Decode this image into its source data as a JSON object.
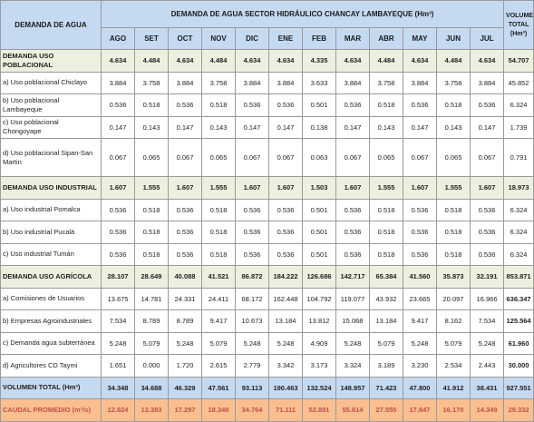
{
  "table": {
    "corner_header": "DEMANDA DE AGUA",
    "group_header": "DEMANDA DE AGUA SECTOR HIDRÁULICO CHANCAY LAMBAYEQUE (Hm³)",
    "total_header": "VOLUMEN TOTAL (Hm³)",
    "months": [
      "AGO",
      "SET",
      "OCT",
      "NOV",
      "DIC",
      "ENE",
      "FEB",
      "MAR",
      "ABR",
      "MAY",
      "JUN",
      "JUL"
    ],
    "rows": [
      {
        "kind": "cat",
        "label": "DEMANDA USO POBLACIONAL",
        "values": [
          "4.634",
          "4.484",
          "4.634",
          "4.484",
          "4.634",
          "4.634",
          "4.335",
          "4.634",
          "4.484",
          "4.634",
          "4.484",
          "4.634"
        ],
        "total": "54.707"
      },
      {
        "kind": "sub",
        "label": "a) Uso poblacional Chiclayo",
        "values": [
          "3.884",
          "3.758",
          "3.884",
          "3.758",
          "3.884",
          "3.884",
          "3.633",
          "3.884",
          "3.758",
          "3.884",
          "3.758",
          "3.884"
        ],
        "total": "45.852"
      },
      {
        "kind": "sub",
        "label": "b) Uso poblacional Lambayeque",
        "values": [
          "0.536",
          "0.518",
          "0.536",
          "0.518",
          "0.536",
          "0.536",
          "0.501",
          "0.536",
          "0.518",
          "0.536",
          "0.518",
          "0.536"
        ],
        "total": "6.324"
      },
      {
        "kind": "sub",
        "label": "c) Uso poblacional Chongoyape",
        "values": [
          "0.147",
          "0.143",
          "0.147",
          "0.143",
          "0.147",
          "0.147",
          "0.138",
          "0.147",
          "0.143",
          "0.147",
          "0.143",
          "0.147"
        ],
        "total": "1.739"
      },
      {
        "kind": "sub",
        "label": "d) Uso poblacional Sipan-San Martin",
        "values": [
          "0.067",
          "0.065",
          "0.067",
          "0.065",
          "0.067",
          "0.067",
          "0.063",
          "0.067",
          "0.065",
          "0.067",
          "0.065",
          "0.067"
        ],
        "total": "0.791",
        "tall": true
      },
      {
        "kind": "cat",
        "label": "DEMANDA USO INDUSTRIAL",
        "values": [
          "1.607",
          "1.555",
          "1.607",
          "1.555",
          "1.607",
          "1.607",
          "1.503",
          "1.607",
          "1.555",
          "1.607",
          "1.555",
          "1.607"
        ],
        "total": "18.973"
      },
      {
        "kind": "sub",
        "label": "a) Uso industrial Pomalca",
        "values": [
          "0.536",
          "0.518",
          "0.536",
          "0.518",
          "0.536",
          "0.536",
          "0.501",
          "0.536",
          "0.518",
          "0.536",
          "0.518",
          "0.536"
        ],
        "total": "6.324"
      },
      {
        "kind": "sub",
        "label": "b) Uso industrial Pucalá",
        "values": [
          "0.536",
          "0.518",
          "0.536",
          "0.518",
          "0.536",
          "0.536",
          "0.501",
          "0.536",
          "0.518",
          "0.536",
          "0.518",
          "0.536"
        ],
        "total": "6.324"
      },
      {
        "kind": "sub",
        "label": "c) Uso industrial Tumán",
        "values": [
          "0.536",
          "0.518",
          "0.536",
          "0.518",
          "0.536",
          "0.536",
          "0.501",
          "0.536",
          "0.518",
          "0.536",
          "0.518",
          "0.536"
        ],
        "total": "6.324"
      },
      {
        "kind": "cat",
        "label": "DEMANDA USO AGRÍCOLA",
        "values": [
          "28.107",
          "28.649",
          "40.088",
          "41.521",
          "86.872",
          "184.222",
          "126.686",
          "142.717",
          "65.384",
          "41.560",
          "35.873",
          "32.191"
        ],
        "total": "853.871"
      },
      {
        "kind": "sub",
        "label": "a) Comisiones de Usuarios",
        "values": [
          "13.675",
          "14.781",
          "24.331",
          "24.411",
          "68.172",
          "162.448",
          "104.792",
          "119.077",
          "43.932",
          "23.665",
          "20.097",
          "16.966"
        ],
        "total": "636.347",
        "boldtotal": true
      },
      {
        "kind": "sub",
        "label": "b) Empresas Agroindustriales",
        "values": [
          "7.534",
          "8.789",
          "8.789",
          "9.417",
          "10.673",
          "13.184",
          "13.812",
          "15.068",
          "13.184",
          "9.417",
          "8.162",
          "7.534"
        ],
        "total": "125.564",
        "boldtotal": true
      },
      {
        "kind": "sub",
        "label": "c) Demanda agua subterránea",
        "values": [
          "5.248",
          "5.079",
          "5.248",
          "5.079",
          "5.248",
          "5.248",
          "4.909",
          "5.248",
          "5.079",
          "5.248",
          "5.079",
          "5.248"
        ],
        "total": "61.960",
        "boldtotal": true
      },
      {
        "kind": "sub",
        "label": "d) Agricultores CD Taymi",
        "values": [
          "1.651",
          "0.000",
          "1.720",
          "2.615",
          "2.779",
          "3.342",
          "3.173",
          "3.324",
          "3.189",
          "3.230",
          "2.534",
          "2.443"
        ],
        "total": "30.000",
        "boldtotal": true
      },
      {
        "kind": "tot",
        "label": "VOLUMEN TOTAL (Hm³)",
        "values": [
          "34.348",
          "34.688",
          "46.329",
          "47.561",
          "93.113",
          "190.463",
          "132.524",
          "148.957",
          "71.423",
          "47.800",
          "41.912",
          "38.431"
        ],
        "total": "927.551"
      },
      {
        "kind": "flow",
        "label": "CAUDAL PROMEDIO (m³/s)",
        "values": [
          "12.824",
          "13.383",
          "17.297",
          "18.349",
          "34.764",
          "71.111",
          "52.891",
          "55.614",
          "27.555",
          "17.847",
          "16.170",
          "14.349"
        ],
        "total": "29.332"
      }
    ]
  }
}
